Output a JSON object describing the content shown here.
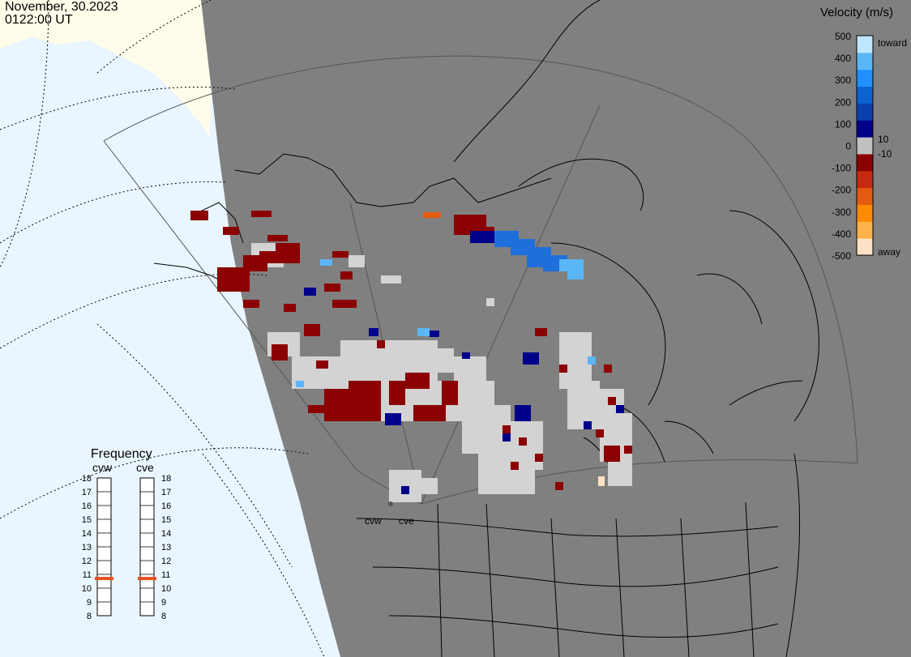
{
  "header": {
    "date": "November, 30.2023",
    "time": "0122:00 UT"
  },
  "colorbar": {
    "title": "Velocity (m/s)",
    "ticks": [
      "500",
      "400",
      "300",
      "200",
      "100",
      "0",
      "-100",
      "-200",
      "-300",
      "-400",
      "-500"
    ],
    "inner_ticks": [
      "10",
      "-10"
    ],
    "toward_label": "toward",
    "away_label": "away",
    "colors": [
      "#fde1c4",
      "#ffb24a",
      "#ff8c00",
      "#e45a10",
      "#c42a10",
      "#8b0000",
      "#c0c0c0",
      "#00008b",
      "#0a3fb0",
      "#0b63cf",
      "#1e90ff",
      "#5bb6f7",
      "#bfe6ff"
    ]
  },
  "frequency": {
    "title": "Frequency",
    "radars": [
      {
        "code": "cvw",
        "value_mhz": 10.7
      },
      {
        "code": "cve",
        "value_mhz": 10.7
      }
    ],
    "scale": [
      "18",
      "17",
      "16",
      "15",
      "14",
      "13",
      "12",
      "11",
      "10",
      "9",
      "8"
    ],
    "marker_color": "#e8501e"
  },
  "map": {
    "station_labels": [
      "cvw",
      "cve"
    ],
    "land_color": "#808080",
    "nightside_land_color": "#fffcea",
    "ocean_color": "#eaf6ff"
  }
}
